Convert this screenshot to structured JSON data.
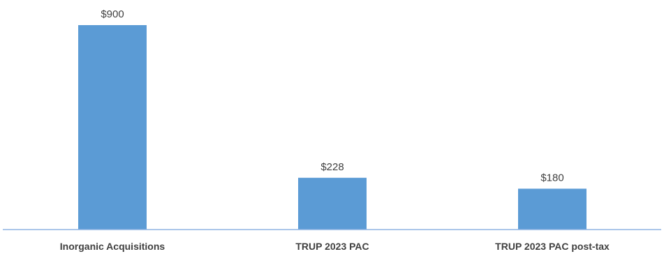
{
  "chart_data": {
    "type": "bar",
    "categories": [
      "Inorganic Acquisitions",
      "TRUP 2023 PAC",
      "TRUP 2023 PAC post-tax"
    ],
    "values": [
      900,
      228,
      180
    ],
    "value_labels": [
      "$900",
      "$228",
      "$180"
    ],
    "title": "",
    "xlabel": "",
    "ylabel": "",
    "ylim": [
      0,
      1000
    ],
    "grid": false,
    "legend": "none",
    "bar_color": "#5B9BD5",
    "axis_color": "#8EB4E3"
  }
}
